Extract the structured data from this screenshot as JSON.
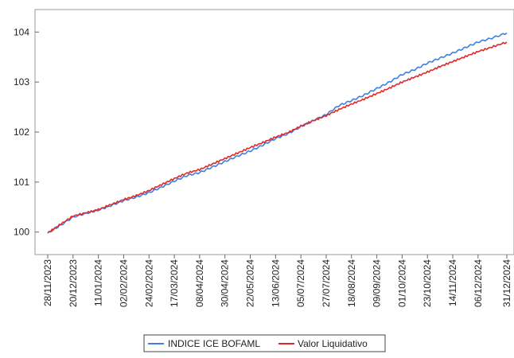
{
  "chart_data": {
    "type": "line",
    "title": "",
    "xlabel": "",
    "ylabel": "",
    "x_tick_labels": [
      "28/11/2023",
      "20/12/2023",
      "11/01/2024",
      "02/02/2024",
      "24/02/2024",
      "17/03/2024",
      "08/04/2024",
      "30/04/2024",
      "22/05/2024",
      "13/06/2024",
      "05/07/2024",
      "27/07/2024",
      "18/08/2024",
      "09/09/2024",
      "01/10/2024",
      "23/10/2024",
      "14/11/2024",
      "06/12/2024",
      "31/12/2024"
    ],
    "y_tick_labels": [
      "100",
      "101",
      "102",
      "103",
      "104"
    ],
    "ylim": [
      99.55,
      104.45
    ],
    "grid": false,
    "legend_position": "bottom",
    "series": [
      {
        "name": "INDICE ICE BOFAML",
        "color": "#3f7fe0",
        "points": [
          [
            "28/11/2023",
            99.98
          ],
          [
            "08/12/2023",
            100.12
          ],
          [
            "20/12/2023",
            100.3
          ],
          [
            "01/01/2024",
            100.38
          ],
          [
            "11/01/2024",
            100.44
          ],
          [
            "22/01/2024",
            100.53
          ],
          [
            "02/02/2024",
            100.63
          ],
          [
            "13/02/2024",
            100.7
          ],
          [
            "24/02/2024",
            100.79
          ],
          [
            "06/03/2024",
            100.9
          ],
          [
            "17/03/2024",
            101.02
          ],
          [
            "28/03/2024",
            101.13
          ],
          [
            "08/04/2024",
            101.19
          ],
          [
            "19/04/2024",
            101.3
          ],
          [
            "30/04/2024",
            101.41
          ],
          [
            "11/05/2024",
            101.52
          ],
          [
            "22/05/2024",
            101.62
          ],
          [
            "02/06/2024",
            101.74
          ],
          [
            "13/06/2024",
            101.87
          ],
          [
            "24/06/2024",
            101.97
          ],
          [
            "05/07/2024",
            102.11
          ],
          [
            "16/07/2024",
            102.23
          ],
          [
            "27/07/2024",
            102.35
          ],
          [
            "07/08/2024",
            102.53
          ],
          [
            "18/08/2024",
            102.63
          ],
          [
            "29/08/2024",
            102.74
          ],
          [
            "09/09/2024",
            102.87
          ],
          [
            "20/09/2024",
            103.0
          ],
          [
            "01/10/2024",
            103.15
          ],
          [
            "12/10/2024",
            103.25
          ],
          [
            "23/10/2024",
            103.38
          ],
          [
            "03/11/2024",
            103.48
          ],
          [
            "14/11/2024",
            103.58
          ],
          [
            "25/11/2024",
            103.69
          ],
          [
            "06/12/2024",
            103.8
          ],
          [
            "18/12/2024",
            103.88
          ],
          [
            "31/12/2024",
            103.98
          ]
        ]
      },
      {
        "name": "Valor Liquidativo",
        "color": "#e02a2a",
        "points": [
          [
            "28/11/2023",
            99.98
          ],
          [
            "08/12/2023",
            100.14
          ],
          [
            "20/12/2023",
            100.32
          ],
          [
            "01/01/2024",
            100.39
          ],
          [
            "11/01/2024",
            100.45
          ],
          [
            "22/01/2024",
            100.55
          ],
          [
            "02/02/2024",
            100.65
          ],
          [
            "13/02/2024",
            100.73
          ],
          [
            "24/02/2024",
            100.83
          ],
          [
            "06/03/2024",
            100.95
          ],
          [
            "17/03/2024",
            101.07
          ],
          [
            "28/03/2024",
            101.18
          ],
          [
            "08/04/2024",
            101.25
          ],
          [
            "19/04/2024",
            101.36
          ],
          [
            "30/04/2024",
            101.47
          ],
          [
            "11/05/2024",
            101.58
          ],
          [
            "22/05/2024",
            101.69
          ],
          [
            "02/06/2024",
            101.79
          ],
          [
            "13/06/2024",
            101.9
          ],
          [
            "24/06/2024",
            101.99
          ],
          [
            "05/07/2024",
            102.12
          ],
          [
            "16/07/2024",
            102.23
          ],
          [
            "27/07/2024",
            102.33
          ],
          [
            "07/08/2024",
            102.45
          ],
          [
            "18/08/2024",
            102.56
          ],
          [
            "29/08/2024",
            102.66
          ],
          [
            "09/09/2024",
            102.77
          ],
          [
            "20/09/2024",
            102.88
          ],
          [
            "01/10/2024",
            103.0
          ],
          [
            "12/10/2024",
            103.1
          ],
          [
            "23/10/2024",
            103.2
          ],
          [
            "03/11/2024",
            103.31
          ],
          [
            "14/11/2024",
            103.41
          ],
          [
            "25/11/2024",
            103.51
          ],
          [
            "06/12/2024",
            103.61
          ],
          [
            "18/12/2024",
            103.7
          ],
          [
            "31/12/2024",
            103.8
          ]
        ]
      }
    ]
  }
}
